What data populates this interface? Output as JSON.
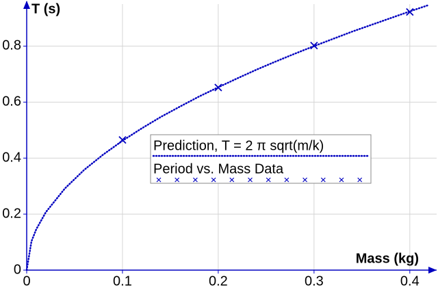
{
  "chart_data": {
    "type": "line",
    "xlabel": "Mass (kg)",
    "ylabel": "T (s)",
    "xlim": [
      0,
      0.428
    ],
    "ylim": [
      0,
      0.95
    ],
    "xticks": [
      0,
      0.1,
      0.2,
      0.3,
      0.4
    ],
    "yticks": [
      0,
      0.2,
      0.4,
      0.6,
      0.8
    ],
    "grid": true,
    "legend": "center",
    "series": [
      {
        "name": "Prediction, T = 2 π sqrt(m/k)",
        "color": "#0000c0",
        "style": "dotted",
        "x": [
          0,
          0.005,
          0.01,
          0.02,
          0.04,
          0.06,
          0.08,
          0.1,
          0.12,
          0.14,
          0.16,
          0.18,
          0.2,
          0.22,
          0.24,
          0.26,
          0.28,
          0.3,
          0.32,
          0.34,
          0.36,
          0.38,
          0.4,
          0.42
        ],
        "values": [
          0,
          0.103,
          0.146,
          0.207,
          0.292,
          0.358,
          0.413,
          0.462,
          0.506,
          0.547,
          0.584,
          0.62,
          0.653,
          0.685,
          0.716,
          0.745,
          0.773,
          0.8,
          0.826,
          0.852,
          0.876,
          0.9,
          0.924,
          0.947
        ]
      },
      {
        "name": "Period vs. Mass Data",
        "color": "#0000c0",
        "style": "marker-x",
        "x": [
          0.1,
          0.2,
          0.3,
          0.4
        ],
        "values": [
          0.465,
          0.652,
          0.802,
          0.922
        ]
      }
    ]
  }
}
